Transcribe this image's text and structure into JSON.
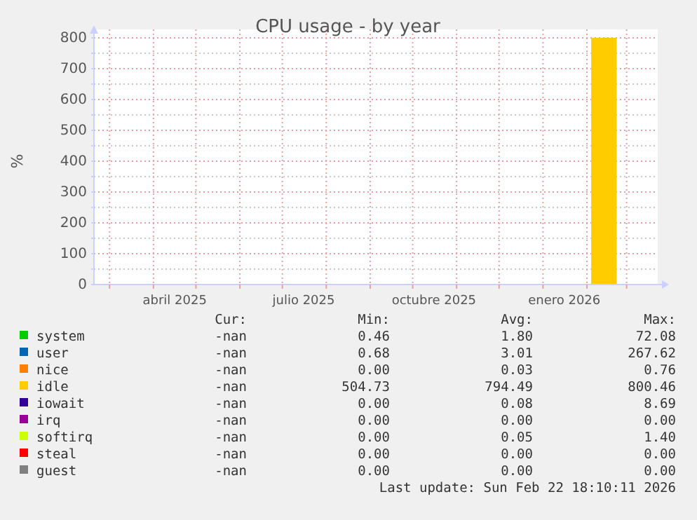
{
  "chart_data": {
    "type": "area",
    "title": "CPU usage - by year",
    "ylabel": "%",
    "xlim": [
      "2025-02-18",
      "2026-03-21"
    ],
    "xticks": [
      {
        "value": "2025-03-01",
        "label": null
      },
      {
        "value": "2025-04-01",
        "label": null
      },
      {
        "value": "2025-04-16",
        "label": "abril 2025"
      },
      {
        "value": "2025-05-01",
        "label": null
      },
      {
        "value": "2025-06-01",
        "label": null
      },
      {
        "value": "2025-07-01",
        "label": null
      },
      {
        "value": "2025-07-16",
        "label": "julio 2025"
      },
      {
        "value": "2025-08-01",
        "label": null
      },
      {
        "value": "2025-09-01",
        "label": null
      },
      {
        "value": "2025-10-01",
        "label": null
      },
      {
        "value": "2025-10-16",
        "label": "octubre 2025"
      },
      {
        "value": "2025-11-01",
        "label": null
      },
      {
        "value": "2025-12-01",
        "label": null
      },
      {
        "value": "2026-01-01",
        "label": null
      },
      {
        "value": "2026-01-16",
        "label": "enero 2026"
      },
      {
        "value": "2026-02-01",
        "label": null
      },
      {
        "value": "2026-03-01",
        "label": null
      }
    ],
    "ylim": [
      0,
      800
    ],
    "yticks": [
      0,
      {
        "value": 50,
        "label": null
      },
      100,
      {
        "value": 150,
        "label": null
      },
      200,
      {
        "value": 250,
        "label": null
      },
      300,
      {
        "value": 350,
        "label": null
      },
      400,
      {
        "value": 450,
        "label": null
      },
      500,
      {
        "value": 550,
        "label": null
      },
      600,
      {
        "value": 650,
        "label": null
      },
      700,
      {
        "value": 750,
        "label": null
      },
      800
    ],
    "grid": true,
    "legend": "bottom",
    "series": [
      {
        "name": "system",
        "color": "#00cc00",
        "values": [
          null,
          null
        ]
      },
      {
        "name": "user",
        "color": "#0066b3",
        "values": [
          null,
          null
        ]
      },
      {
        "name": "nice",
        "color": "#ff8000",
        "values": [
          null,
          null
        ]
      },
      {
        "name": "idle",
        "color": "#ffcc00",
        "x": [
          "2026-02-04",
          "2026-02-22"
        ],
        "values": [
          800,
          800
        ]
      },
      {
        "name": "iowait",
        "color": "#330099",
        "values": [
          null,
          null
        ]
      },
      {
        "name": "irq",
        "color": "#990099",
        "values": [
          null,
          null
        ]
      },
      {
        "name": "softirq",
        "color": "#ccff00",
        "values": [
          null,
          null
        ]
      },
      {
        "name": "steal",
        "color": "#ff0000",
        "values": [
          null,
          null
        ]
      },
      {
        "name": "guest",
        "color": "#808080",
        "values": [
          null,
          null
        ]
      }
    ],
    "annotations": [
      "Cur:",
      "Min:",
      "Avg:",
      "Max:",
      "-nan",
      "0.46",
      "1.80",
      "72.08",
      "-nan",
      "0.68",
      "3.01",
      "267.62",
      "-nan",
      "0.00",
      "0.03",
      "0.76",
      "-nan",
      "504.73",
      "794.49",
      "800.46",
      "-nan",
      "0.00",
      "0.08",
      "8.69",
      "-nan",
      "0.00",
      "0.00",
      "0.00",
      "-nan",
      "0.00",
      "0.05",
      "1.40",
      "-nan",
      "0.00",
      "0.00",
      "0.00",
      "-nan",
      "0.00",
      "0.00",
      "0.00",
      "Last update: Sun Feb 22 18:10:11 2026"
    ]
  }
}
